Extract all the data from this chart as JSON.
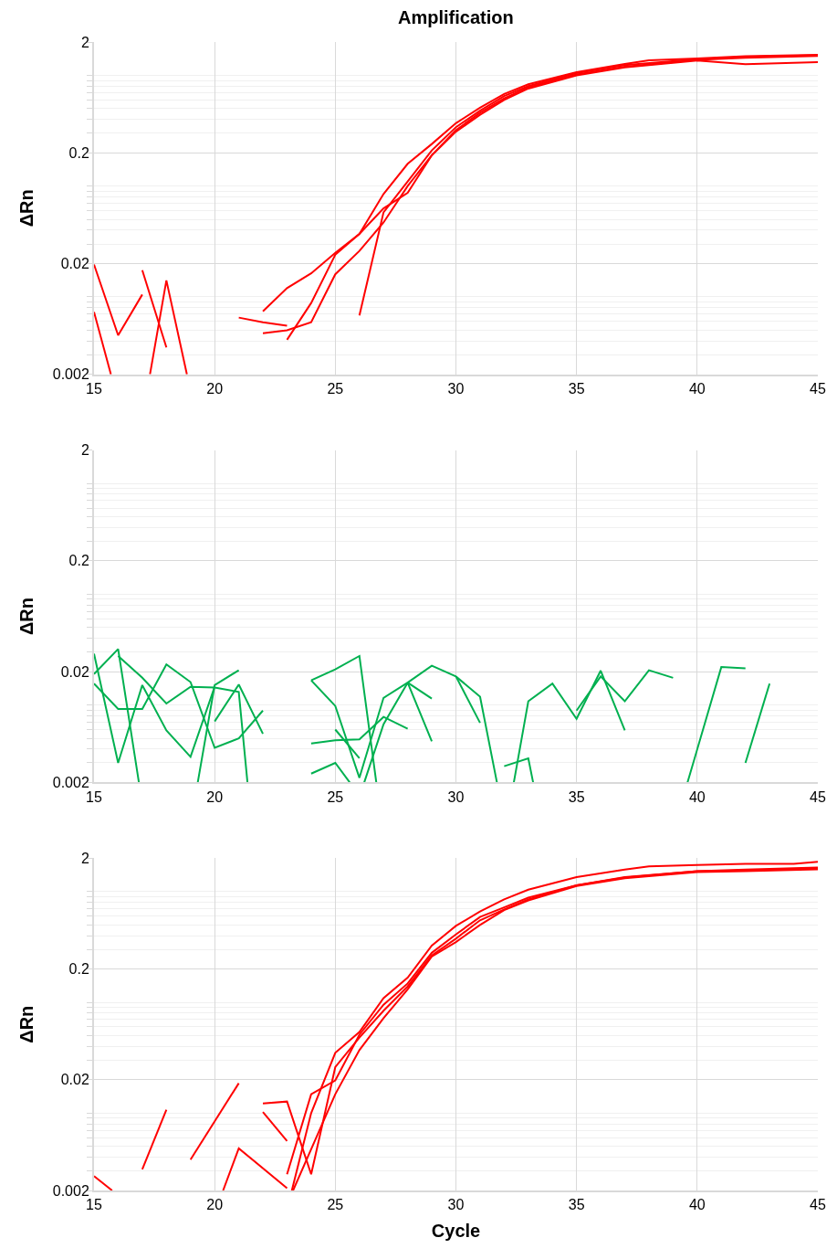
{
  "chart_data": [
    {
      "type": "line",
      "title": "Amplification",
      "ylabel": "ΔRn",
      "xlim": [
        15,
        45
      ],
      "xticks": [
        15,
        20,
        25,
        30,
        35,
        40,
        45
      ],
      "ylim": [
        0.002,
        2
      ],
      "yticks": [
        0.002,
        0.02,
        0.2,
        2
      ],
      "log": true,
      "grid": true,
      "series": [
        {
          "color": "#ff0000",
          "x": [
            22,
            23,
            24,
            25,
            26,
            27,
            28,
            29,
            30,
            31,
            32,
            33,
            35,
            37,
            38,
            40,
            42,
            45
          ],
          "values": [
            0.0074,
            0.012,
            0.0163,
            0.025,
            0.037,
            0.085,
            0.159,
            0.24,
            0.37,
            0.51,
            0.68,
            0.83,
            1.07,
            1.27,
            1.37,
            1.42,
            1.49,
            1.53
          ]
        },
        {
          "color": "#ff0000",
          "x": [
            23,
            24,
            25,
            26,
            27,
            28,
            29,
            30,
            31,
            32,
            33,
            35,
            37,
            40,
            42,
            45
          ],
          "values": [
            0.0041,
            0.0088,
            0.024,
            0.037,
            0.063,
            0.087,
            0.19,
            0.32,
            0.46,
            0.62,
            0.78,
            1.02,
            1.2,
            1.38,
            1.44,
            1.5
          ]
        },
        {
          "color": "#ff0000",
          "x": [
            22,
            23,
            24,
            25,
            26,
            27,
            28,
            29,
            30,
            31,
            32,
            33,
            35,
            37,
            40,
            42,
            45
          ],
          "values": [
            0.0047,
            0.005,
            0.0059,
            0.016,
            0.026,
            0.047,
            0.1,
            0.19,
            0.31,
            0.44,
            0.6,
            0.76,
            1.0,
            1.18,
            1.36,
            1.26,
            1.32
          ]
        },
        {
          "color": "#ff0000",
          "x": [
            26,
            27,
            28,
            29,
            30,
            31,
            32,
            33,
            35,
            37,
            40,
            42,
            45
          ],
          "values": [
            0.0068,
            0.058,
            0.11,
            0.21,
            0.34,
            0.48,
            0.65,
            0.8,
            1.05,
            1.24,
            1.4,
            1.47,
            1.52
          ]
        },
        {
          "color": "#ff0000",
          "x": [
            21,
            22,
            23
          ],
          "values": [
            0.0065,
            0.0059,
            0.0055
          ]
        },
        {
          "color": "#ff0000",
          "x": [
            15,
            16,
            17
          ],
          "values": [
            0.0196,
            0.0045,
            0.0105
          ]
        },
        {
          "color": "#ff0000",
          "x": [
            15,
            15.7
          ],
          "values": [
            0.0073,
            0.002
          ]
        },
        {
          "color": "#ff0000",
          "x": [
            17,
            18
          ],
          "values": [
            0.0174,
            0.0035
          ]
        },
        {
          "color": "#ff0000",
          "x": [
            17.32,
            18,
            18.85
          ],
          "values": [
            0.002,
            0.0141,
            0.002
          ]
        }
      ]
    },
    {
      "type": "line",
      "ylabel": "ΔRn",
      "xlim": [
        15,
        45
      ],
      "xticks": [
        15,
        20,
        25,
        30,
        35,
        40,
        45
      ],
      "ylim": [
        0.002,
        2
      ],
      "yticks": [
        0.002,
        0.02,
        0.2,
        2
      ],
      "log": true,
      "grid": true,
      "series": [
        {
          "color": "#00b050",
          "x": [
            15,
            16,
            17,
            18,
            19,
            20
          ],
          "values": [
            0.029,
            0.003,
            0.0151,
            0.0059,
            0.0034,
            0.0146
          ]
        },
        {
          "color": "#00b050",
          "x": [
            19.3,
            20,
            21
          ],
          "values": [
            0.002,
            0.0151,
            0.0206
          ]
        },
        {
          "color": "#00b050",
          "x": [
            15,
            16,
            16.86
          ],
          "values": [
            0.019,
            0.032,
            0.002
          ]
        },
        {
          "color": "#00b050",
          "x": [
            15,
            16,
            17,
            18,
            19,
            20,
            21,
            22
          ],
          "values": [
            0.0156,
            0.0092,
            0.0092,
            0.0232,
            0.0161,
            0.0041,
            0.005,
            0.0089
          ]
        },
        {
          "color": "#00b050",
          "x": [
            16,
            17,
            18,
            19,
            20,
            21,
            21.36
          ],
          "values": [
            0.0277,
            0.0176,
            0.0103,
            0.0146,
            0.0144,
            0.0131,
            0.002
          ]
        },
        {
          "color": "#00b050",
          "x": [
            20,
            21,
            22
          ],
          "values": [
            0.0071,
            0.0153,
            0.0055
          ]
        },
        {
          "color": "#00b050",
          "x": [
            24,
            25,
            26,
            26.7
          ],
          "values": [
            0.0167,
            0.021,
            0.0277,
            0.002
          ]
        },
        {
          "color": "#00b050",
          "x": [
            24,
            25,
            26,
            27,
            28,
            29,
            30,
            31,
            31.7
          ],
          "values": [
            0.0167,
            0.0098,
            0.0022,
            0.0116,
            0.0159,
            0.0226,
            0.0181,
            0.0119,
            0.002
          ]
        },
        {
          "color": "#00b050",
          "x": [
            24,
            25,
            26,
            27,
            28
          ],
          "values": [
            0.0045,
            0.0048,
            0.0049,
            0.0078,
            0.0061
          ]
        },
        {
          "color": "#00b050",
          "x": [
            24,
            25,
            25.6
          ],
          "values": [
            0.0024,
            0.003,
            0.002
          ]
        },
        {
          "color": "#00b050",
          "x": [
            25,
            26
          ],
          "values": [
            0.006,
            0.0033
          ]
        },
        {
          "color": "#00b050",
          "x": [
            26.2,
            27,
            28,
            29
          ],
          "values": [
            0.002,
            0.0067,
            0.0159,
            0.0047
          ]
        },
        {
          "color": "#00b050",
          "x": [
            28,
            29
          ],
          "values": [
            0.0159,
            0.0114
          ]
        },
        {
          "color": "#00b050",
          "x": [
            30,
            31
          ],
          "values": [
            0.0181,
            0.0069
          ]
        },
        {
          "color": "#00b050",
          "x": [
            32,
            33,
            33.2
          ],
          "values": [
            0.0028,
            0.0033,
            0.002
          ]
        },
        {
          "color": "#00b050",
          "x": [
            32.4,
            33,
            34,
            35,
            36,
            37
          ],
          "values": [
            0.002,
            0.0108,
            0.0156,
            0.0075,
            0.0204,
            0.0059
          ]
        },
        {
          "color": "#00b050",
          "x": [
            35,
            36,
            37,
            38,
            39
          ],
          "values": [
            0.0089,
            0.0181,
            0.0108,
            0.0206,
            0.0176
          ]
        },
        {
          "color": "#00b050",
          "x": [
            39.6,
            41,
            42
          ],
          "values": [
            0.002,
            0.022,
            0.0214
          ]
        },
        {
          "color": "#00b050",
          "x": [
            42,
            43
          ],
          "values": [
            0.003,
            0.0156
          ]
        }
      ]
    },
    {
      "type": "line",
      "xlabel": "Cycle",
      "ylabel": "ΔRn",
      "xlim": [
        15,
        45
      ],
      "xticks": [
        15,
        20,
        25,
        30,
        35,
        40,
        45
      ],
      "ylim": [
        0.002,
        2
      ],
      "yticks": [
        0.002,
        0.02,
        0.2,
        2
      ],
      "log": true,
      "grid": true,
      "series": [
        {
          "color": "#ff0000",
          "x": [
            23.2,
            24,
            25,
            26,
            27,
            28,
            29,
            30,
            31,
            32,
            33,
            35,
            37,
            38,
            40,
            42,
            44,
            45
          ],
          "values": [
            0.002,
            0.01,
            0.035,
            0.054,
            0.109,
            0.167,
            0.325,
            0.49,
            0.66,
            0.85,
            1.04,
            1.35,
            1.58,
            1.69,
            1.74,
            1.78,
            1.78,
            1.86
          ]
        },
        {
          "color": "#ff0000",
          "x": [
            23,
            24,
            25,
            26,
            27,
            28,
            29,
            30,
            31,
            32,
            33,
            35,
            37,
            40,
            42,
            45
          ],
          "values": [
            0.0028,
            0.0148,
            0.0197,
            0.051,
            0.095,
            0.148,
            0.28,
            0.41,
            0.59,
            0.72,
            0.88,
            1.14,
            1.35,
            1.53,
            1.58,
            1.65
          ]
        },
        {
          "color": "#ff0000",
          "x": [
            23.25,
            25,
            26,
            27,
            28,
            29,
            30,
            31,
            32,
            33,
            35,
            37,
            40,
            42,
            45
          ],
          "values": [
            0.002,
            0.0148,
            0.037,
            0.072,
            0.131,
            0.259,
            0.35,
            0.5,
            0.68,
            0.83,
            1.12,
            1.32,
            1.5,
            1.53,
            1.59
          ]
        },
        {
          "color": "#ff0000",
          "x": [
            22,
            23,
            24,
            25,
            26,
            27,
            28,
            29,
            30,
            31,
            32,
            33,
            35,
            37,
            40,
            42,
            45
          ],
          "values": [
            0.0122,
            0.0127,
            0.0028,
            0.026,
            0.048,
            0.084,
            0.139,
            0.265,
            0.376,
            0.55,
            0.69,
            0.85,
            1.14,
            1.34,
            1.53,
            1.55,
            1.62
          ]
        },
        {
          "color": "#ff0000",
          "x": [
            20.35,
            21,
            23
          ],
          "values": [
            0.002,
            0.0048,
            0.0021
          ]
        },
        {
          "color": "#ff0000",
          "x": [
            22,
            23
          ],
          "values": [
            0.0102,
            0.0056
          ]
        },
        {
          "color": "#ff0000",
          "x": [
            17,
            18
          ],
          "values": [
            0.0031,
            0.0107
          ]
        },
        {
          "color": "#ff0000",
          "x": [
            19,
            21
          ],
          "values": [
            0.0038,
            0.0186
          ]
        },
        {
          "color": "#ff0000",
          "x": [
            15,
            15.75
          ],
          "values": [
            0.0027,
            0.002
          ]
        }
      ]
    }
  ]
}
